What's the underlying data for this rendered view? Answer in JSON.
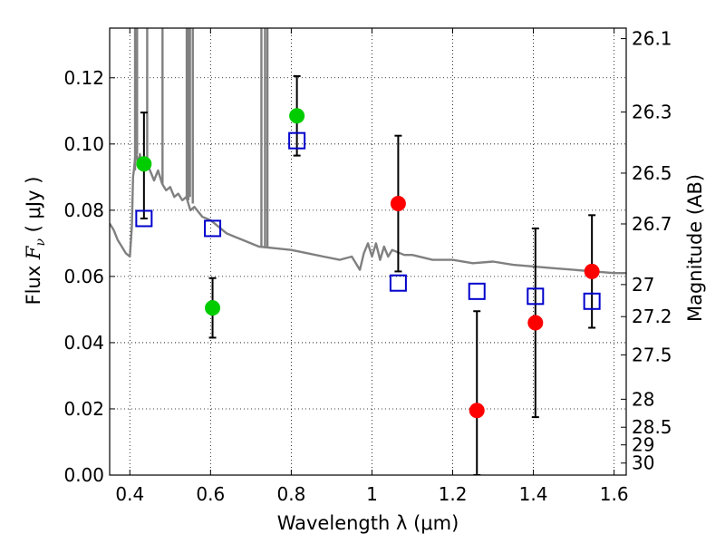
{
  "chart_data": {
    "type": "scatter",
    "title": "",
    "xlabel": "Wavelength  λ (μm)",
    "ylabel": "Flux  F_ν  ( μJy )",
    "y2label": "Magnitude (AB)",
    "xlim": [
      0.35,
      1.63
    ],
    "ylim": [
      0.0,
      0.135
    ],
    "grid": true,
    "x_ticks": [
      {
        "value": 0.4,
        "label": "0.4"
      },
      {
        "value": 0.6,
        "label": "0.6"
      },
      {
        "value": 0.8,
        "label": "0.8"
      },
      {
        "value": 1.0,
        "label": "1"
      },
      {
        "value": 1.2,
        "label": "1.2"
      },
      {
        "value": 1.4,
        "label": "1.4"
      },
      {
        "value": 1.6,
        "label": "1.6"
      }
    ],
    "y_ticks": [
      {
        "value": 0.0,
        "label": "0.00"
      },
      {
        "value": 0.02,
        "label": "0.02"
      },
      {
        "value": 0.04,
        "label": "0.04"
      },
      {
        "value": 0.06,
        "label": "0.06"
      },
      {
        "value": 0.08,
        "label": "0.08"
      },
      {
        "value": 0.1,
        "label": "0.10"
      },
      {
        "value": 0.12,
        "label": "0.12"
      }
    ],
    "y2_ticks": [
      {
        "mag": 26.1,
        "label": "26.1"
      },
      {
        "mag": 26.3,
        "label": "26.3"
      },
      {
        "mag": 26.5,
        "label": "26.5"
      },
      {
        "mag": 26.7,
        "label": "26.7"
      },
      {
        "mag": 27.0,
        "label": "27"
      },
      {
        "mag": 27.2,
        "label": "27.2"
      },
      {
        "mag": 27.5,
        "label": "27.5"
      },
      {
        "mag": 28.0,
        "label": "28"
      },
      {
        "mag": 28.5,
        "label": "28.5"
      },
      {
        "mag": 29.0,
        "label": "29"
      },
      {
        "mag": 30.0,
        "label": "30"
      }
    ],
    "series": [
      {
        "kind": "line",
        "color": "#808080",
        "x": [
          0.35,
          0.36,
          0.37,
          0.38,
          0.39,
          0.4,
          0.405,
          0.408,
          0.41,
          0.415,
          0.42,
          0.425,
          0.43,
          0.44,
          0.45,
          0.46,
          0.47,
          0.48,
          0.49,
          0.5,
          0.51,
          0.52,
          0.53,
          0.54,
          0.55,
          0.56,
          0.58,
          0.6,
          0.62,
          0.64,
          0.66,
          0.68,
          0.7,
          0.72,
          0.76,
          0.8,
          0.84,
          0.88,
          0.92,
          0.95,
          0.97,
          0.98,
          0.99,
          1.0,
          1.01,
          1.02,
          1.03,
          1.04,
          1.05,
          1.08,
          1.1,
          1.15,
          1.2,
          1.25,
          1.3,
          1.35,
          1.4,
          1.45,
          1.5,
          1.55,
          1.6,
          1.63
        ],
        "y": [
          0.076,
          0.074,
          0.071,
          0.069,
          0.067,
          0.066,
          0.075,
          0.09,
          0.092,
          0.098,
          0.094,
          0.097,
          0.093,
          0.095,
          0.092,
          0.089,
          0.092,
          0.088,
          0.086,
          0.087,
          0.084,
          0.085,
          0.083,
          0.084,
          0.08,
          0.081,
          0.078,
          0.077,
          0.075,
          0.073,
          0.072,
          0.071,
          0.07,
          0.069,
          0.0685,
          0.068,
          0.067,
          0.066,
          0.065,
          0.066,
          0.062,
          0.067,
          0.07,
          0.066,
          0.07,
          0.065,
          0.069,
          0.066,
          0.068,
          0.0665,
          0.0665,
          0.065,
          0.065,
          0.064,
          0.0645,
          0.0635,
          0.063,
          0.0625,
          0.062,
          0.0615,
          0.061,
          0.061
        ]
      },
      {
        "kind": "spikes",
        "color": "#808080",
        "x": [
          0.413,
          0.418,
          0.443,
          0.481,
          0.541,
          0.545,
          0.549,
          0.556,
          0.726,
          0.735,
          0.741
        ],
        "y_base": [
          0.092,
          0.097,
          0.094,
          0.088,
          0.084,
          0.083,
          0.084,
          0.082,
          0.069,
          0.069,
          0.069
        ]
      },
      {
        "kind": "points",
        "name": "",
        "marker": "circle",
        "color": "#00cc00",
        "x": [
          0.435,
          0.605,
          0.814
        ],
        "y": [
          0.094,
          0.0505,
          0.1085
        ],
        "err_low": [
          0.0775,
          0.0415,
          0.0965
        ],
        "err_high": [
          0.1095,
          0.0595,
          0.1205
        ]
      },
      {
        "kind": "points",
        "name": "",
        "marker": "circle",
        "color": "#ff0000",
        "x": [
          1.065,
          1.26,
          1.405,
          1.545
        ],
        "y": [
          0.082,
          0.0195,
          0.046,
          0.0615
        ],
        "err_low": [
          0.0615,
          0.0,
          0.0175,
          0.0445
        ],
        "err_high": [
          0.1025,
          0.0495,
          0.0745,
          0.0785
        ]
      },
      {
        "kind": "points",
        "name": "",
        "marker": "square",
        "color": "#0000cc",
        "x": [
          0.435,
          0.605,
          0.814,
          1.065,
          1.26,
          1.405,
          1.545
        ],
        "y": [
          0.0775,
          0.0745,
          0.101,
          0.058,
          0.0555,
          0.054,
          0.0525
        ]
      }
    ]
  }
}
